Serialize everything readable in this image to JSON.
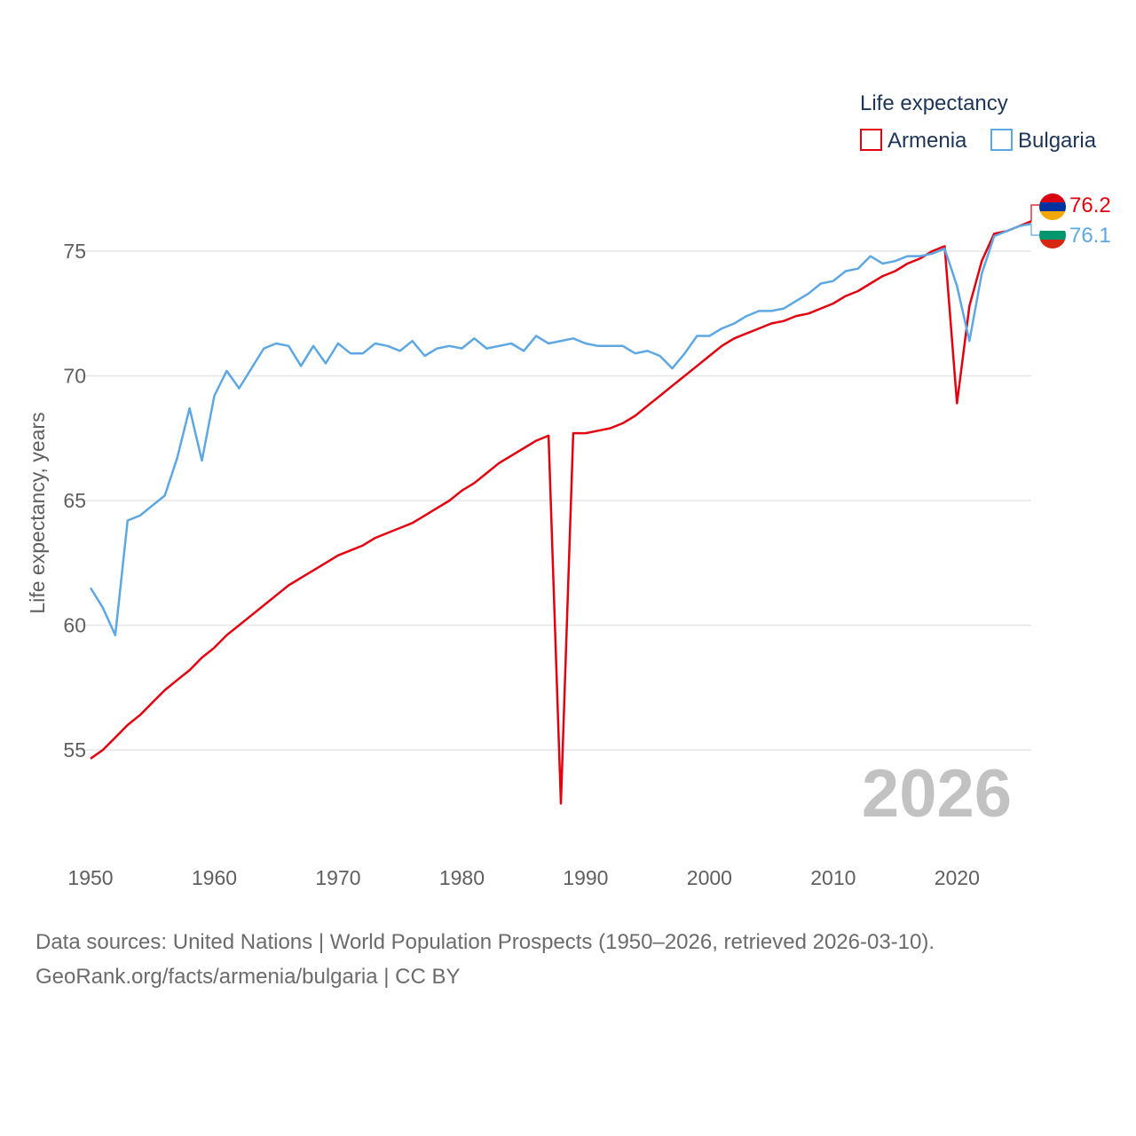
{
  "chart_data": {
    "type": "line",
    "legend_title": "Life expectancy",
    "ylabel": "Life expectancy, years",
    "xlim": [
      1950,
      2026
    ],
    "ylim": [
      51.5,
      78
    ],
    "yticks": [
      55,
      60,
      65,
      70,
      75
    ],
    "xticks": [
      1950,
      1960,
      1970,
      1980,
      1990,
      2000,
      2010,
      2020
    ],
    "current_year": "2026",
    "legend_position": "top-right",
    "series": [
      {
        "name": "Armenia",
        "color": "#e3000f",
        "end_label": "76.2",
        "flag": "armenia-flag",
        "x": [
          1950,
          1951,
          1952,
          1953,
          1954,
          1955,
          1956,
          1957,
          1958,
          1959,
          1960,
          1961,
          1962,
          1963,
          1964,
          1965,
          1966,
          1967,
          1968,
          1969,
          1970,
          1971,
          1972,
          1973,
          1974,
          1975,
          1976,
          1977,
          1978,
          1979,
          1980,
          1981,
          1982,
          1983,
          1984,
          1985,
          1986,
          1987,
          1988,
          1989,
          1990,
          1991,
          1992,
          1993,
          1994,
          1995,
          1996,
          1997,
          1998,
          1999,
          2000,
          2001,
          2002,
          2003,
          2004,
          2005,
          2006,
          2007,
          2008,
          2009,
          2010,
          2011,
          2012,
          2013,
          2014,
          2015,
          2016,
          2017,
          2018,
          2019,
          2020,
          2021,
          2022,
          2023,
          2024,
          2025,
          2026
        ],
        "y": [
          54.65,
          55.0,
          55.5,
          56.0,
          56.4,
          56.9,
          57.4,
          57.8,
          58.2,
          58.7,
          59.1,
          59.6,
          60.0,
          60.4,
          60.8,
          61.2,
          61.6,
          61.9,
          62.2,
          62.5,
          62.8,
          63.0,
          63.2,
          63.5,
          63.7,
          63.9,
          64.1,
          64.4,
          64.7,
          65.0,
          65.4,
          65.7,
          66.1,
          66.5,
          66.8,
          67.1,
          67.4,
          67.6,
          52.85,
          67.7,
          67.7,
          67.8,
          67.9,
          68.1,
          68.4,
          68.8,
          69.2,
          69.6,
          70.0,
          70.4,
          70.8,
          71.2,
          71.5,
          71.7,
          71.9,
          72.1,
          72.2,
          72.4,
          72.5,
          72.7,
          72.9,
          73.2,
          73.4,
          73.7,
          74.0,
          74.2,
          74.5,
          74.7,
          75.0,
          75.2,
          68.9,
          72.8,
          74.6,
          75.7,
          75.8,
          76.0,
          76.2
        ]
      },
      {
        "name": "Bulgaria",
        "color": "#5da7e3",
        "end_label": "76.1",
        "flag": "bulgaria-flag",
        "x": [
          1950,
          1951,
          1952,
          1953,
          1954,
          1955,
          1956,
          1957,
          1958,
          1959,
          1960,
          1961,
          1962,
          1963,
          1964,
          1965,
          1966,
          1967,
          1968,
          1969,
          1970,
          1971,
          1972,
          1973,
          1974,
          1975,
          1976,
          1977,
          1978,
          1979,
          1980,
          1981,
          1982,
          1983,
          1984,
          1985,
          1986,
          1987,
          1988,
          1989,
          1990,
          1991,
          1992,
          1993,
          1994,
          1995,
          1996,
          1997,
          1998,
          1999,
          2000,
          2001,
          2002,
          2003,
          2004,
          2005,
          2006,
          2007,
          2008,
          2009,
          2010,
          2011,
          2012,
          2013,
          2014,
          2015,
          2016,
          2017,
          2018,
          2019,
          2020,
          2021,
          2022,
          2023,
          2024,
          2025,
          2026
        ],
        "y": [
          61.5,
          60.7,
          59.6,
          64.2,
          64.4,
          64.8,
          65.2,
          66.7,
          68.7,
          66.6,
          69.2,
          70.2,
          69.5,
          70.3,
          71.1,
          71.3,
          71.2,
          70.4,
          71.2,
          70.5,
          71.3,
          70.9,
          70.9,
          71.3,
          71.2,
          71.0,
          71.4,
          70.8,
          71.1,
          71.2,
          71.1,
          71.5,
          71.1,
          71.2,
          71.3,
          71.0,
          71.6,
          71.3,
          71.4,
          71.5,
          71.3,
          71.2,
          71.2,
          71.2,
          70.9,
          71.0,
          70.8,
          70.3,
          70.9,
          71.6,
          71.6,
          71.9,
          72.1,
          72.4,
          72.6,
          72.6,
          72.7,
          73.0,
          73.3,
          73.7,
          73.8,
          74.2,
          74.3,
          74.8,
          74.5,
          74.6,
          74.8,
          74.8,
          74.9,
          75.1,
          73.6,
          71.4,
          74.1,
          75.6,
          75.8,
          76.0,
          76.1
        ]
      }
    ]
  },
  "source": {
    "line1": "Data sources: United Nations | World Population Prospects (1950–2026, retrieved 2026-03-10).",
    "line2": "GeoRank.org/facts/armenia/bulgaria | CC BY"
  }
}
